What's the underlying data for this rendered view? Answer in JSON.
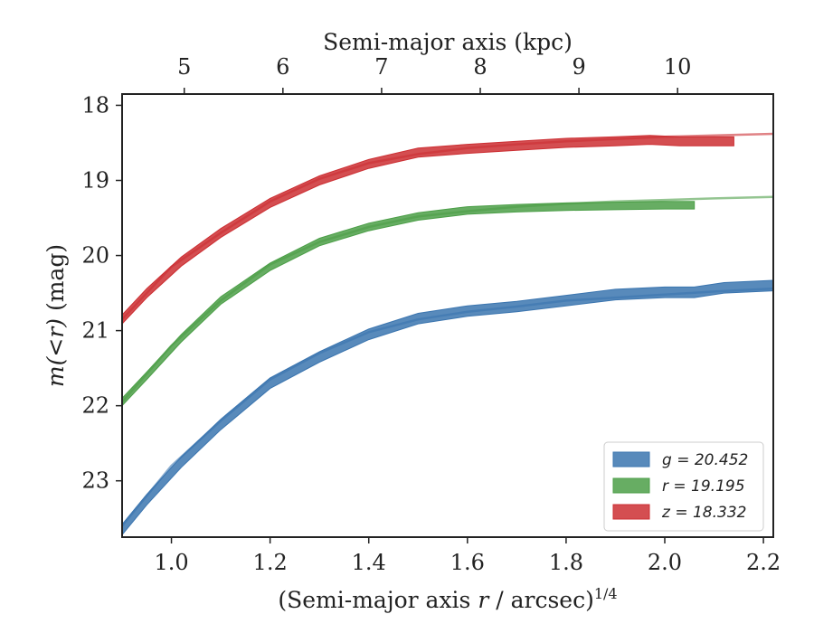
{
  "chart_data": {
    "type": "line",
    "xlabel": "(Semi-major axis r / arcsec)^{1/4}",
    "xlabel_parts": {
      "pre": "(Semi-major axis ",
      "var": "r",
      "mid": " / arcsec)",
      "sup": "1/4"
    },
    "ylabel": "m(<r) (mag)",
    "ylabel_parts": {
      "math": "m(<r)",
      "unit": " (mag)"
    },
    "top_xlabel": "Semi-major axis (kpc)",
    "xlim": [
      0.9,
      2.22
    ],
    "ylim": [
      23.75,
      17.85
    ],
    "y_inverted": true,
    "x_ticks": [
      "1.0",
      "1.2",
      "1.4",
      "1.6",
      "1.8",
      "2.0",
      "2.2"
    ],
    "x_tick_values": [
      1.0,
      1.2,
      1.4,
      1.6,
      1.8,
      2.0,
      2.2
    ],
    "y_ticks": [
      "18",
      "19",
      "20",
      "21",
      "22",
      "23"
    ],
    "y_tick_values": [
      18,
      19,
      20,
      21,
      22,
      23
    ],
    "top_ticks": [
      "5",
      "6",
      "7",
      "8",
      "9",
      "10"
    ],
    "top_tick_positions": [
      1.026,
      1.226,
      1.426,
      1.626,
      1.826,
      2.026
    ],
    "grid": false,
    "legend_position": "lower-right",
    "legend": [
      {
        "label": "g = 20.452",
        "color": "#3b75af"
      },
      {
        "label": "r = 19.195",
        "color": "#4c9f48"
      },
      {
        "label": "z = 18.332",
        "color": "#cc2f33"
      }
    ],
    "series": [
      {
        "name": "g = 20.452",
        "color": "#3b75af",
        "band_width": 0.07,
        "x": [
          0.9,
          0.95,
          1.02,
          1.1,
          1.2,
          1.3,
          1.4,
          1.5,
          1.6,
          1.7,
          1.8,
          1.9,
          2.0,
          2.06,
          2.12,
          2.22
        ],
        "y": [
          23.65,
          23.25,
          22.75,
          22.25,
          21.7,
          21.35,
          21.05,
          20.84,
          20.74,
          20.68,
          20.6,
          20.52,
          20.49,
          20.49,
          20.43,
          20.4
        ],
        "model_x": [
          0.9,
          1.0,
          1.1,
          1.2,
          1.3,
          1.4,
          1.5,
          1.6,
          1.7,
          1.8,
          1.9,
          2.0,
          2.1,
          2.22
        ],
        "model_y": [
          23.6,
          22.8,
          22.2,
          21.65,
          21.3,
          21.02,
          20.85,
          20.75,
          20.68,
          20.6,
          20.56,
          20.52,
          20.48,
          20.44
        ]
      },
      {
        "name": "r = 19.195",
        "color": "#4c9f48",
        "band_width": 0.05,
        "x": [
          0.9,
          0.95,
          1.02,
          1.1,
          1.2,
          1.3,
          1.4,
          1.5,
          1.6,
          1.7,
          1.8,
          1.9,
          2.0,
          2.06
        ],
        "y": [
          21.95,
          21.6,
          21.1,
          20.6,
          20.15,
          19.82,
          19.62,
          19.48,
          19.4,
          19.37,
          19.35,
          19.34,
          19.33,
          19.33
        ],
        "model_x": [
          0.9,
          1.0,
          1.1,
          1.2,
          1.3,
          1.4,
          1.5,
          1.6,
          1.7,
          1.8,
          1.9,
          2.0,
          2.1,
          2.22
        ],
        "model_y": [
          21.95,
          21.2,
          20.6,
          20.12,
          19.82,
          19.62,
          19.48,
          19.41,
          19.35,
          19.31,
          19.28,
          19.26,
          19.24,
          19.22
        ]
      },
      {
        "name": "z = 18.332",
        "color": "#cc2f33",
        "band_width": 0.06,
        "x": [
          0.9,
          0.95,
          1.02,
          1.1,
          1.2,
          1.3,
          1.4,
          1.5,
          1.6,
          1.7,
          1.8,
          1.9,
          1.97,
          2.03,
          2.14
        ],
        "y": [
          20.85,
          20.5,
          20.08,
          19.7,
          19.3,
          19.0,
          18.78,
          18.63,
          18.58,
          18.54,
          18.5,
          18.48,
          18.46,
          18.48,
          18.48
        ],
        "model_x": [
          0.9,
          1.0,
          1.1,
          1.2,
          1.3,
          1.4,
          1.5,
          1.6,
          1.7,
          1.8,
          1.9,
          2.0,
          2.1,
          2.22
        ],
        "model_y": [
          20.85,
          20.15,
          19.7,
          19.28,
          18.98,
          18.77,
          18.65,
          18.57,
          18.52,
          18.48,
          18.45,
          18.42,
          18.4,
          18.38
        ]
      }
    ]
  }
}
